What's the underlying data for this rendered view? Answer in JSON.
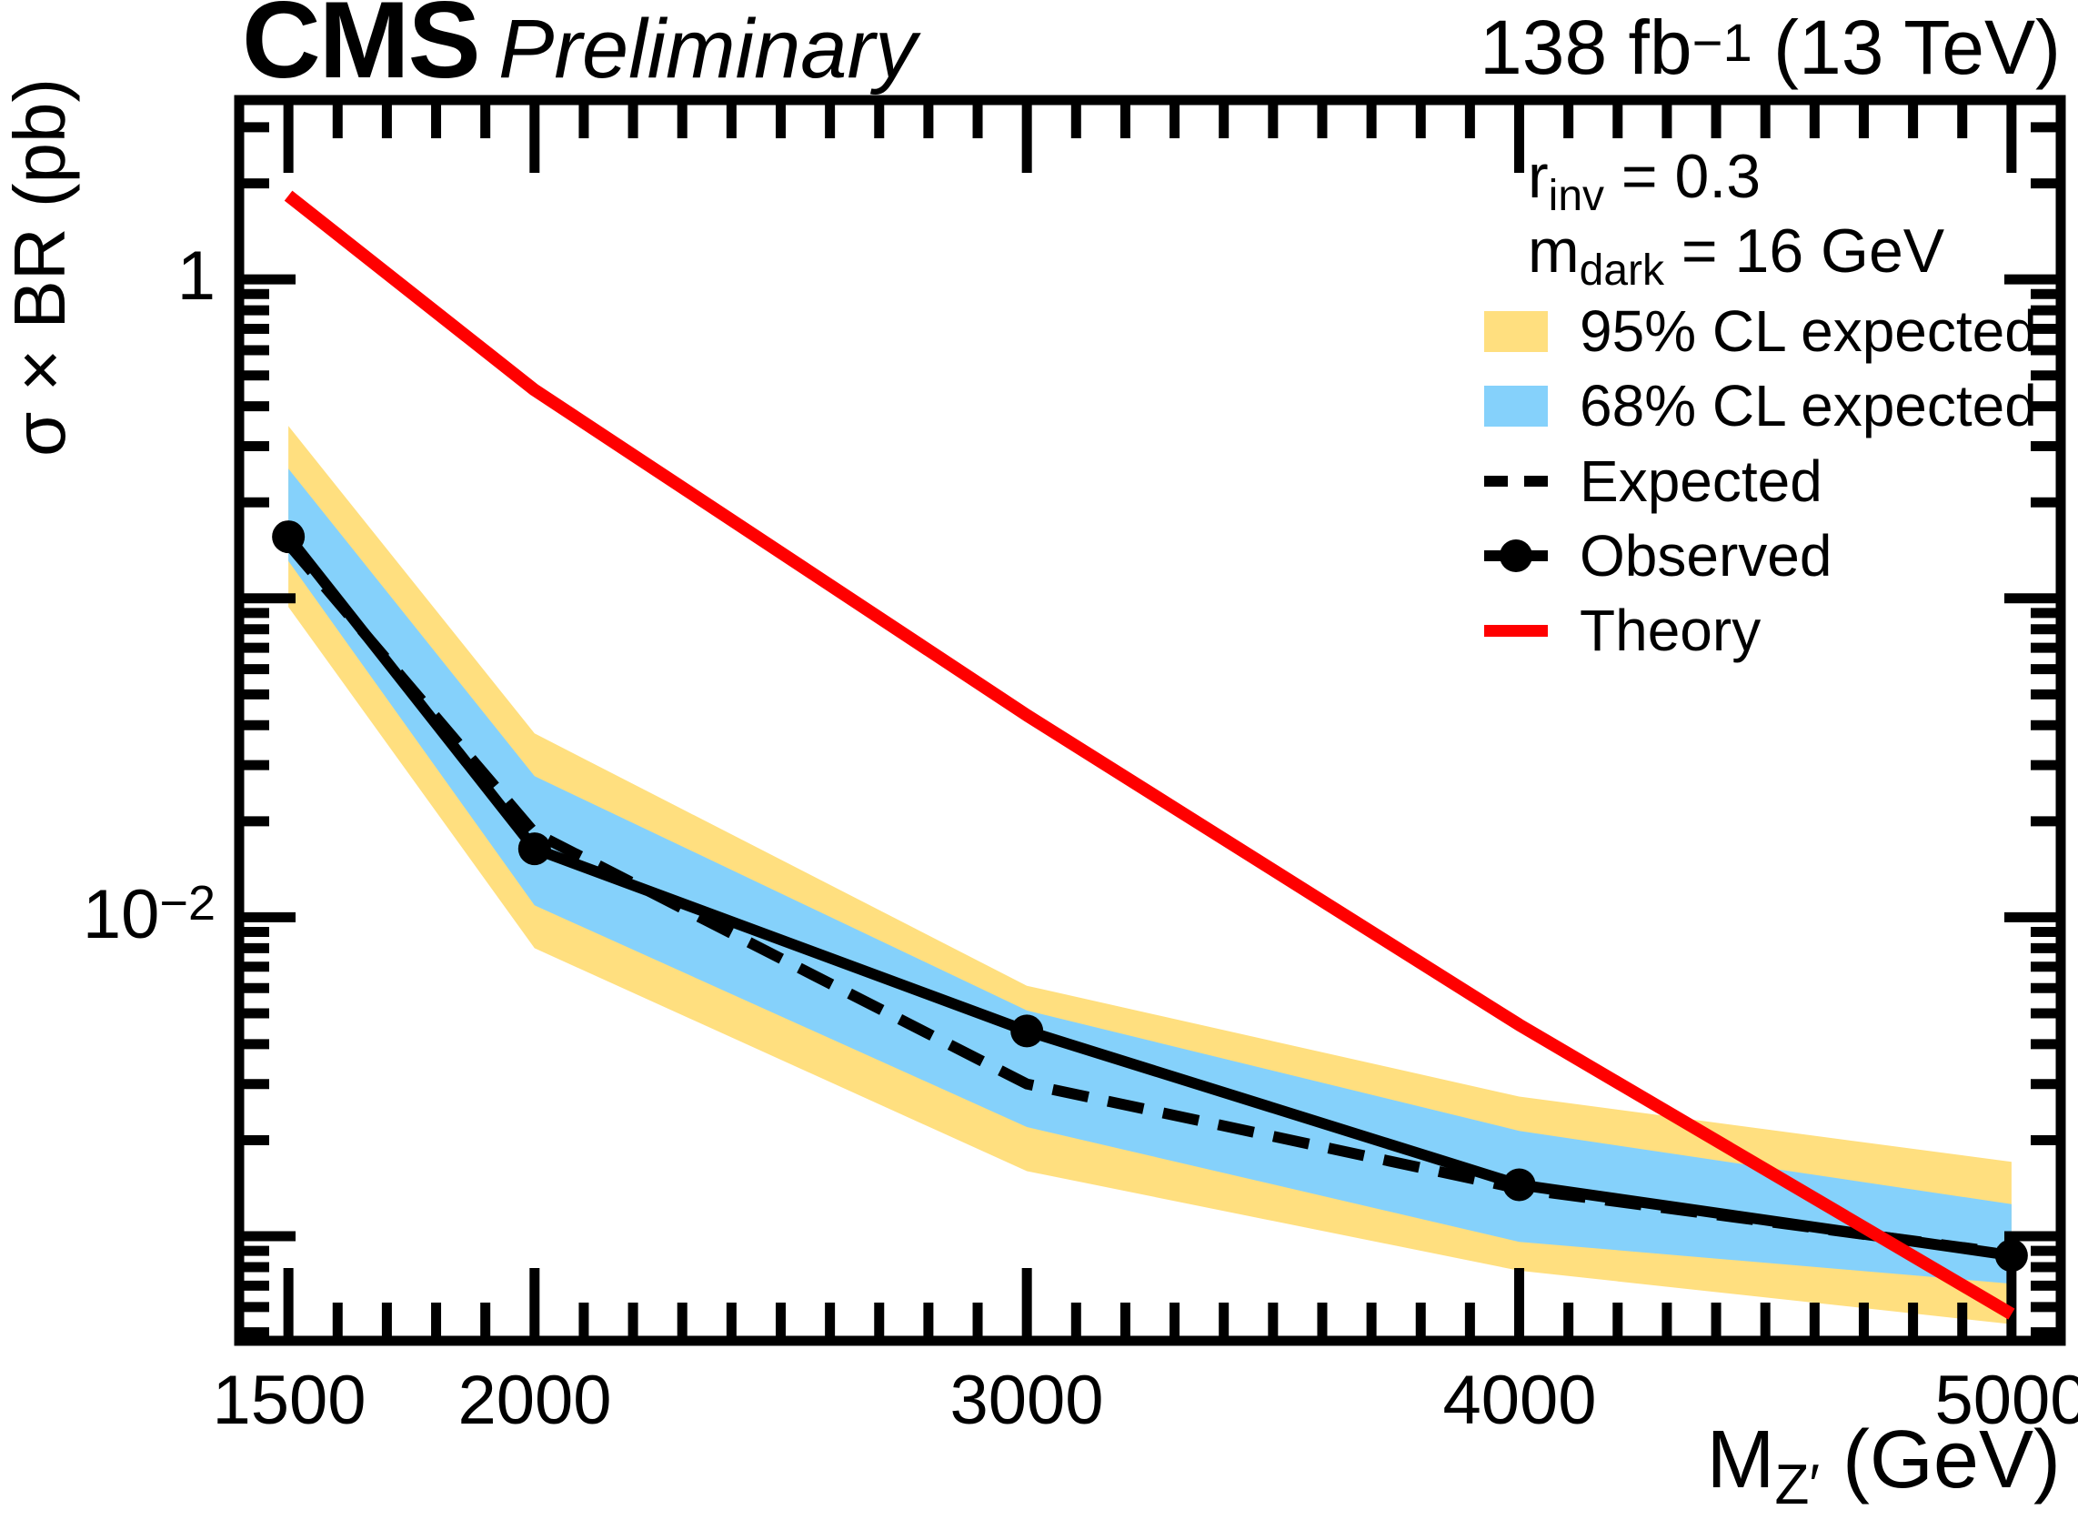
{
  "header": {
    "experiment": "CMS",
    "status": "Preliminary",
    "lumi_prefix": "138 fb",
    "lumi_exponent": "−1",
    "lumi_suffix": " (13 TeV)"
  },
  "params": {
    "p1_base": "r",
    "p1_sub": "inv",
    "p1_rest": " = 0.3",
    "p2_base": "m",
    "p2_sub": "dark",
    "p2_rest": " = 16 GeV"
  },
  "legend": {
    "entries": [
      {
        "label": "95% CL expected",
        "swatch_color": "#FFDF7F"
      },
      {
        "label": "68% CL expected",
        "swatch_color": "#85D1FB"
      },
      {
        "label": "Expected",
        "style": "dashed-black"
      },
      {
        "label": "Observed",
        "style": "black-line-marker"
      },
      {
        "label": "Theory",
        "style": "red-line"
      }
    ]
  },
  "axes": {
    "x": {
      "title_base": "M",
      "title_sub": "Z′",
      "title_rest": " (GeV)",
      "tick_labels": [
        "1500",
        "2000",
        "3000",
        "4000",
        "5000"
      ]
    },
    "y": {
      "title": "σ × BR (pb)",
      "tick1_label": "1",
      "tick2_base": "10",
      "tick2_exp": "−2"
    }
  },
  "chart_data": {
    "type": "line",
    "title": "CMS Preliminary",
    "subtitle": "138 fb^-1 (13 TeV)",
    "xlabel": "M_Z' (GeV)",
    "ylabel": "sigma x BR (pb)",
    "xscale": "linear",
    "yscale": "log",
    "xlim": [
      1400,
      5100
    ],
    "ylim": [
      0.00047,
      3.65
    ],
    "x_major_ticks": [
      1500,
      2000,
      3000,
      4000,
      5000
    ],
    "x_minor_step": 100,
    "y_major_ticks": [
      1,
      0.1,
      0.01,
      0.001
    ],
    "grid": false,
    "legend_position": "top-right",
    "x": [
      1500,
      2000,
      3000,
      4000,
      5000
    ],
    "series": [
      {
        "name": "Observed",
        "style": "solid-marker",
        "color": "#000000",
        "values": [
          0.156,
          0.0164,
          0.0044,
          0.00145,
          0.00087
        ]
      },
      {
        "name": "Expected",
        "style": "dashed",
        "color": "#000000",
        "values": [
          0.148,
          0.0184,
          0.003,
          0.00141,
          0.00088
        ]
      },
      {
        "name": "Theory",
        "style": "solid",
        "color": "#FF0000",
        "values": [
          1.83,
          0.45,
          0.043,
          0.0046,
          0.00057
        ]
      }
    ],
    "bands": [
      {
        "name": "95% CL expected",
        "color": "#FFDF7F",
        "upper": [
          0.347,
          0.0377,
          0.0061,
          0.00274,
          0.00171
        ],
        "lower": [
          0.094,
          0.008,
          0.0016,
          0.00078,
          0.00053
        ]
      },
      {
        "name": "68% CL expected",
        "color": "#85D1FB",
        "upper": [
          0.255,
          0.0277,
          0.0051,
          0.00214,
          0.00126
        ],
        "lower": [
          0.131,
          0.0109,
          0.0022,
          0.00096,
          0.00071
        ]
      }
    ],
    "colors": {
      "band95": "#FFDF7F",
      "band68": "#85D1FB",
      "theory": "#FF0000",
      "observed": "#000000"
    }
  }
}
